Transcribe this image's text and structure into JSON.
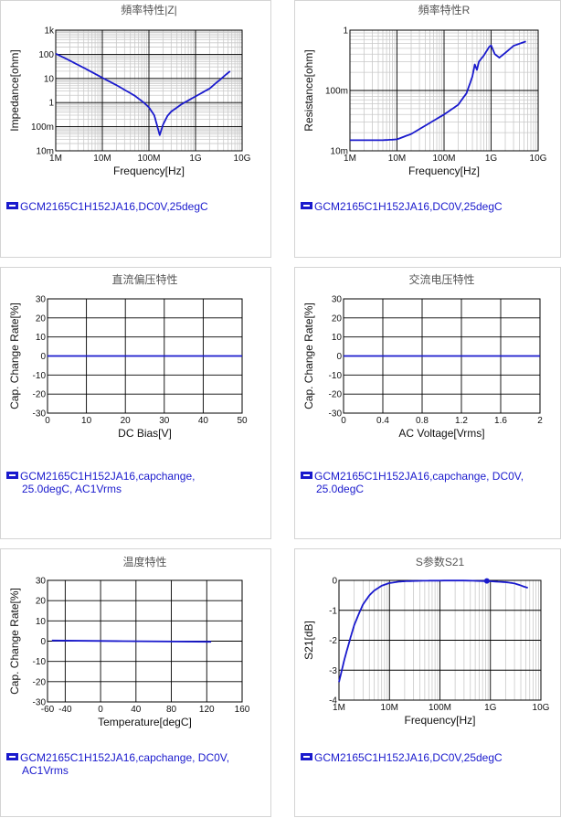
{
  "colors": {
    "series": "#1a1acd",
    "grid_major": "#000000",
    "grid_minor": "#c9c9c9",
    "frame": "#000000"
  },
  "chart_data": [
    {
      "id": "impedance",
      "type": "line",
      "title": "頻率特性|Z|",
      "xlabel": "Frequency[Hz]",
      "ylabel": "Impedance[ohm]",
      "xscale": "log",
      "yscale": "log",
      "xlim": [
        1000000,
        10000000000
      ],
      "ylim": [
        0.01,
        1000
      ],
      "xticks": [
        1000000,
        10000000,
        100000000,
        1000000000,
        10000000000
      ],
      "xtick_labels": [
        "1M",
        "10M",
        "100M",
        "1G",
        "10G"
      ],
      "yticks": [
        0.01,
        0.1,
        1,
        10,
        100,
        1000
      ],
      "ytick_labels": [
        "10m",
        "100m",
        "1",
        "10",
        "100",
        "1k"
      ],
      "grid": true,
      "series": [
        {
          "x": [
            1000000,
            2000000,
            5000000,
            10000000,
            20000000,
            50000000,
            80000000,
            100000000,
            130000000,
            150000000,
            170000000,
            200000000,
            250000000,
            300000000,
            500000000,
            1000000000,
            2000000000,
            5500000000
          ],
          "y": [
            106,
            55,
            22,
            10.6,
            5.3,
            1.9,
            0.95,
            0.63,
            0.3,
            0.11,
            0.045,
            0.12,
            0.28,
            0.42,
            0.85,
            1.8,
            3.8,
            20
          ]
        }
      ],
      "legend": [
        {
          "text": "GCM2165C1H152JA16,DC0V,25degC"
        }
      ]
    },
    {
      "id": "resistance",
      "type": "line",
      "title": "頻率特性R",
      "xlabel": "Frequency[Hz]",
      "ylabel": "Resistance[ohm]",
      "xscale": "log",
      "yscale": "log",
      "xlim": [
        1000000,
        10000000000
      ],
      "ylim": [
        0.01,
        1
      ],
      "xticks": [
        1000000,
        10000000,
        100000000,
        1000000000,
        10000000000
      ],
      "xtick_labels": [
        "1M",
        "10M",
        "100M",
        "1G",
        "10G"
      ],
      "yticks": [
        0.01,
        0.1,
        1
      ],
      "ytick_labels": [
        "10m",
        "100m",
        "1"
      ],
      "grid": true,
      "series": [
        {
          "x": [
            1000000,
            5000000,
            10000000,
            20000000,
            50000000,
            100000000,
            200000000,
            300000000,
            400000000,
            450000000,
            500000000,
            550000000,
            700000000,
            900000000,
            1000000000,
            1200000000,
            1500000000,
            2000000000,
            3000000000,
            5500000000
          ],
          "y": [
            0.015,
            0.015,
            0.0155,
            0.019,
            0.029,
            0.04,
            0.058,
            0.09,
            0.17,
            0.27,
            0.22,
            0.3,
            0.38,
            0.52,
            0.56,
            0.4,
            0.35,
            0.42,
            0.55,
            0.65
          ]
        }
      ],
      "legend": [
        {
          "text": "GCM2165C1H152JA16,DC0V,25degC"
        }
      ]
    },
    {
      "id": "dcbias",
      "type": "line",
      "title": "直流偏压特性",
      "xlabel": "DC Bias[V]",
      "ylabel": "Cap. Change Rate[%]",
      "xscale": "linear",
      "yscale": "linear",
      "xlim": [
        0,
        50
      ],
      "ylim": [
        -30,
        30
      ],
      "xticks": [
        0,
        10,
        20,
        30,
        40,
        50
      ],
      "xtick_labels": [
        "0",
        "10",
        "20",
        "30",
        "40",
        "50"
      ],
      "yticks": [
        -30,
        -20,
        -10,
        0,
        10,
        20,
        30
      ],
      "ytick_labels": [
        "-30",
        "-20",
        "-10",
        "0",
        "10",
        "20",
        "30"
      ],
      "grid": true,
      "series": [
        {
          "x": [
            0,
            50
          ],
          "y": [
            0,
            0
          ]
        }
      ],
      "legend": [
        {
          "text": "GCM2165C1H152JA16,capchange,"
        },
        {
          "text": "25.0degC, AC1Vrms"
        }
      ]
    },
    {
      "id": "acvoltage",
      "type": "line",
      "title": "交流电压特性",
      "xlabel": "AC Voltage[Vrms]",
      "ylabel": "Cap. Change Rate[%]",
      "xscale": "linear",
      "yscale": "linear",
      "xlim": [
        0,
        2
      ],
      "ylim": [
        -30,
        30
      ],
      "xticks": [
        0,
        0.4,
        0.8,
        1.2,
        1.6,
        2
      ],
      "xtick_labels": [
        "0",
        "0.4",
        "0.8",
        "1.2",
        "1.6",
        "2"
      ],
      "yticks": [
        -30,
        -20,
        -10,
        0,
        10,
        20,
        30
      ],
      "ytick_labels": [
        "-30",
        "-20",
        "-10",
        "0",
        "10",
        "20",
        "30"
      ],
      "grid": true,
      "series": [
        {
          "x": [
            0,
            2
          ],
          "y": [
            0,
            0
          ]
        }
      ],
      "legend": [
        {
          "text": "GCM2165C1H152JA16,capchange, DC0V,"
        },
        {
          "text": "25.0degC"
        }
      ]
    },
    {
      "id": "temperature",
      "type": "line",
      "title": "温度特性",
      "xlabel": "Temperature[degC]",
      "ylabel": "Cap. Change Rate[%]",
      "xscale": "linear",
      "yscale": "linear",
      "xlim": [
        -60,
        160
      ],
      "ylim": [
        -30,
        30
      ],
      "xticks": [
        -60,
        -40,
        0,
        40,
        80,
        120,
        160
      ],
      "xtick_labels": [
        "-60",
        "-40",
        "0",
        "40",
        "80",
        "120",
        "160"
      ],
      "xgrid": [
        -40,
        0,
        40,
        80,
        120
      ],
      "yticks": [
        -30,
        -20,
        -10,
        0,
        10,
        20,
        30
      ],
      "ytick_labels": [
        "-30",
        "-20",
        "-10",
        "0",
        "10",
        "20",
        "30"
      ],
      "grid": true,
      "series": [
        {
          "x": [
            -55,
            25,
            125
          ],
          "y": [
            0.3,
            0,
            -0.3
          ]
        }
      ],
      "legend": [
        {
          "text": "GCM2165C1H152JA16,capchange, DC0V,"
        },
        {
          "text": "AC1Vrms"
        }
      ]
    },
    {
      "id": "s21",
      "type": "line",
      "title": "S参数S21",
      "xlabel": "Frequency[Hz]",
      "ylabel": "S21[dB]",
      "xscale": "log",
      "yscale": "linear",
      "xlim": [
        1000000,
        10000000000
      ],
      "ylim": [
        -4,
        0
      ],
      "xticks": [
        1000000,
        10000000,
        100000000,
        1000000000,
        10000000000
      ],
      "xtick_labels": [
        "1M",
        "10M",
        "100M",
        "1G",
        "10G"
      ],
      "yticks": [
        -4,
        -3,
        -2,
        -1,
        0
      ],
      "ytick_labels": [
        "-4",
        "-3",
        "-2",
        "-1",
        "0"
      ],
      "grid": true,
      "series": [
        {
          "x": [
            1000000,
            1300000,
            1700000,
            2000000,
            2500000,
            3000000,
            4000000,
            5000000,
            7000000,
            10000000,
            15000000,
            20000000,
            30000000,
            50000000,
            100000000,
            300000000,
            1000000000,
            2000000000,
            3000000000,
            5500000000
          ],
          "y": [
            -3.4,
            -2.6,
            -1.9,
            -1.5,
            -1.1,
            -0.8,
            -0.5,
            -0.34,
            -0.18,
            -0.09,
            -0.045,
            -0.03,
            -0.02,
            -0.012,
            -0.008,
            -0.005,
            -0.03,
            -0.06,
            -0.1,
            -0.25
          ]
        }
      ],
      "marker": {
        "x": 850000000,
        "y": -0.02
      },
      "legend": [
        {
          "text": "GCM2165C1H152JA16,DC0V,25degC"
        }
      ]
    }
  ]
}
